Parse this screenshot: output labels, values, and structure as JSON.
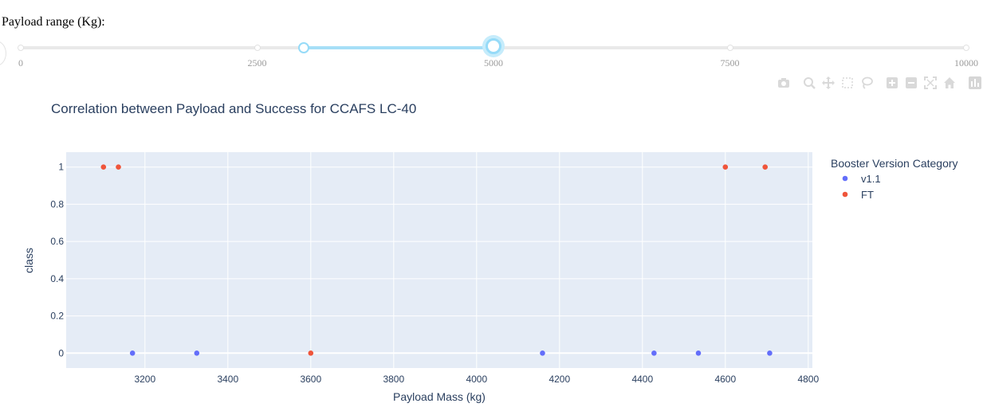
{
  "slider": {
    "label": "Payload range (Kg):",
    "min": 0,
    "max": 10000,
    "selected_range": [
      3000,
      5000
    ],
    "marks": [
      "0",
      "2500",
      "5000",
      "7500",
      "10000"
    ]
  },
  "modebar": {
    "icons": [
      "camera-icon",
      "zoom-icon",
      "pan-icon",
      "box-select-icon",
      "lasso-icon",
      "zoom-in-icon",
      "zoom-out-icon",
      "autoscale-icon",
      "home-icon",
      "plotly-logo-icon"
    ]
  },
  "colors": {
    "v1.1": "#636efa",
    "FT": "#ef553b",
    "plot_bg": "#e5ecf6",
    "text": "#2a3f5f"
  },
  "chart_data": {
    "type": "scatter",
    "title": "Correlation between Payload and Success for CCAFS LC-40",
    "xlabel": "Payload Mass (kg)",
    "ylabel": "class",
    "xlim": [
      3010,
      4810
    ],
    "ylim": [
      -0.08,
      1.08
    ],
    "x_ticks": [
      "3200",
      "3400",
      "3600",
      "3800",
      "4000",
      "4200",
      "4400",
      "4600",
      "4800"
    ],
    "y_ticks": [
      "0",
      "0.2",
      "0.4",
      "0.6",
      "0.8",
      "1"
    ],
    "grid": true,
    "legend": {
      "title": "Booster Version Category",
      "position": "right"
    },
    "series": [
      {
        "name": "v1.1",
        "x": [
          3170,
          3325,
          4159,
          4428,
          4535,
          4707
        ],
        "y": [
          0,
          0,
          0,
          0,
          0,
          0
        ]
      },
      {
        "name": "FT",
        "x": [
          3100,
          3136,
          3600,
          4600,
          4696
        ],
        "y": [
          1,
          1,
          0,
          1,
          1
        ]
      }
    ]
  }
}
